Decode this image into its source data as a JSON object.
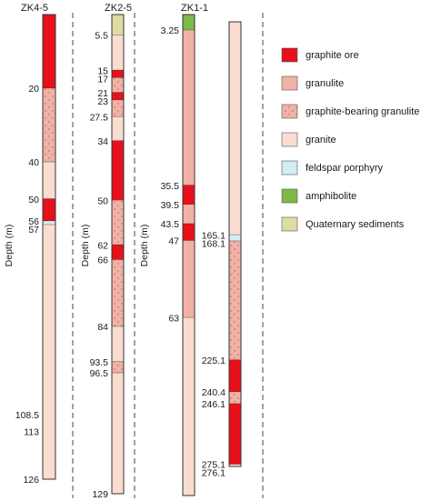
{
  "axis_label": "Depth (m)",
  "colors": {
    "graphite_ore": "#e8101a",
    "granulite": "#f2b1a6",
    "graphite_granulite": "#f2b1a6",
    "granite": "#f8ddd0",
    "feldspar_porphyry": "#d4ecf4",
    "amphibolite": "#7cb947",
    "quaternary": "#dedca0"
  },
  "legend": [
    {
      "key": "graphite_ore",
      "label": "graphite ore"
    },
    {
      "key": "granulite",
      "label": "granulite"
    },
    {
      "key": "graphite_granulite",
      "label": "graphite-bearing granulite"
    },
    {
      "key": "granite",
      "label": "granite"
    },
    {
      "key": "feldspar_porphyry",
      "label": "feldspar porphyry"
    },
    {
      "key": "amphibolite",
      "label": "amphibolite"
    },
    {
      "key": "quaternary",
      "label": "Quaternary sediments"
    }
  ],
  "boreholes": [
    {
      "name": "ZK4-5",
      "bottom": 126,
      "depth_labels": [
        "20",
        "40",
        "50",
        "56",
        "57",
        "108.5",
        "113",
        "126"
      ],
      "layers": [
        {
          "from": 0,
          "to": 20,
          "rock": "graphite_ore"
        },
        {
          "from": 20,
          "to": 40,
          "rock": "graphite_granulite"
        },
        {
          "from": 40,
          "to": 50,
          "rock": "granite"
        },
        {
          "from": 50,
          "to": 56,
          "rock": "graphite_ore"
        },
        {
          "from": 56,
          "to": 57,
          "rock": "feldspar_porphyry"
        },
        {
          "from": 57,
          "to": 126,
          "rock": "granite"
        }
      ]
    },
    {
      "name": "ZK2-5",
      "bottom": 129,
      "depth_labels": [
        "5.5",
        "15",
        "17",
        "21",
        "23",
        "27.5",
        "34",
        "50",
        "62",
        "66",
        "84",
        "93.5",
        "96.5",
        "129"
      ],
      "layers": [
        {
          "from": 0,
          "to": 5.5,
          "rock": "quaternary"
        },
        {
          "from": 5.5,
          "to": 15,
          "rock": "granite"
        },
        {
          "from": 15,
          "to": 17,
          "rock": "graphite_ore"
        },
        {
          "from": 17,
          "to": 21,
          "rock": "graphite_granulite"
        },
        {
          "from": 21,
          "to": 23,
          "rock": "graphite_ore"
        },
        {
          "from": 23,
          "to": 27.5,
          "rock": "graphite_granulite"
        },
        {
          "from": 27.5,
          "to": 34,
          "rock": "granite"
        },
        {
          "from": 34,
          "to": 50,
          "rock": "graphite_ore"
        },
        {
          "from": 50,
          "to": 62,
          "rock": "graphite_granulite"
        },
        {
          "from": 62,
          "to": 66,
          "rock": "graphite_ore"
        },
        {
          "from": 66,
          "to": 84,
          "rock": "graphite_granulite"
        },
        {
          "from": 84,
          "to": 93.5,
          "rock": "granite"
        },
        {
          "from": 93.5,
          "to": 96.5,
          "rock": "graphite_granulite"
        },
        {
          "from": 96.5,
          "to": 129,
          "rock": "granite"
        }
      ]
    },
    {
      "name": "ZK1-1",
      "bottom": 276.1,
      "depth_labels": [
        "3.25",
        "35.5",
        "39.5",
        "43.5",
        "47",
        "63",
        "165.1",
        "168.1",
        "225.1",
        "240.4",
        "246.1",
        "275.1",
        "276.1"
      ],
      "layers": [
        {
          "from": 0,
          "to": 3.25,
          "rock": "amphibolite"
        },
        {
          "from": 3.25,
          "to": 35.5,
          "rock": "granulite"
        },
        {
          "from": 35.5,
          "to": 39.5,
          "rock": "graphite_ore"
        },
        {
          "from": 39.5,
          "to": 43.5,
          "rock": "granulite"
        },
        {
          "from": 43.5,
          "to": 47,
          "rock": "graphite_ore"
        },
        {
          "from": 47,
          "to": 63,
          "rock": "granulite"
        },
        {
          "from": 63,
          "to": 165.1,
          "rock": "granite"
        },
        {
          "from": 165.1,
          "to": 168.1,
          "rock": "feldspar_porphyry"
        },
        {
          "from": 168.1,
          "to": 225.1,
          "rock": "graphite_granulite"
        },
        {
          "from": 225.1,
          "to": 240.4,
          "rock": "graphite_ore"
        },
        {
          "from": 240.4,
          "to": 246.1,
          "rock": "graphite_granulite"
        },
        {
          "from": 246.1,
          "to": 275.1,
          "rock": "graphite_ore"
        },
        {
          "from": 275.1,
          "to": 276.1,
          "rock": "granite"
        }
      ]
    }
  ]
}
